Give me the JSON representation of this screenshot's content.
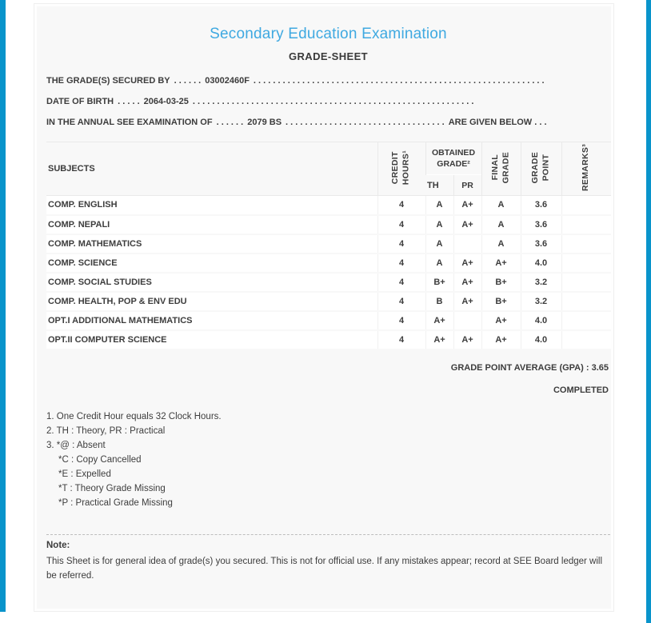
{
  "header": {
    "title": "Secondary Education Examination",
    "subtitle": "GRADE-SHEET"
  },
  "info": {
    "secured_by": {
      "label": "THE GRADE(S) SECURED BY",
      "dots_before": ". . . . . .",
      "value": "03002460F",
      "dots_after": ". . . . . . . . . . . . . . . . . . . . . . . . . . . . . . . . . . . . . . . . . . . . . . . . . . . . . . . . . . . ."
    },
    "date_of_birth": {
      "label": "DATE OF BIRTH",
      "dots_before": ". . . . .",
      "value": "2064-03-25",
      "dots_after": ". . . . . . . . . . . . . . . . . . . . . . . . . . . . . . . . . . . . . . . . . . . . . . . . . . . . . . . . . ."
    },
    "examination": {
      "label": "IN THE ANNUAL SEE EXAMINATION OF",
      "dots_before": ". . . . . .",
      "value": "2079 BS",
      "dots_mid": ". . . . . . . . . . . . . . . . . . . . . . . . . . . . . . . . .",
      "suffix": "ARE GIVEN BELOW . . ."
    }
  },
  "table": {
    "columns": {
      "subjects": "SUBJECTS",
      "credit_hours": "CREDIT\nHOURS¹",
      "obtained_grade": "OBTAINED\nGRADE²",
      "th": "TH",
      "pr": "PR",
      "final_grade": "FINAL\nGRADE",
      "grade_point": "GRADE\nPOINT",
      "remarks": "REMARKS³"
    },
    "rows": [
      {
        "subject": "COMP. ENGLISH",
        "credit_hours": "4",
        "th": "A",
        "pr": "A+",
        "final_grade": "A",
        "grade_point": "3.6",
        "remarks": ""
      },
      {
        "subject": "COMP. NEPALI",
        "credit_hours": "4",
        "th": "A",
        "pr": "A+",
        "final_grade": "A",
        "grade_point": "3.6",
        "remarks": ""
      },
      {
        "subject": "COMP. MATHEMATICS",
        "credit_hours": "4",
        "th": "A",
        "pr": "",
        "final_grade": "A",
        "grade_point": "3.6",
        "remarks": ""
      },
      {
        "subject": "COMP. SCIENCE",
        "credit_hours": "4",
        "th": "A",
        "pr": "A+",
        "final_grade": "A+",
        "grade_point": "4.0",
        "remarks": ""
      },
      {
        "subject": "COMP. SOCIAL STUDIES",
        "credit_hours": "4",
        "th": "B+",
        "pr": "A+",
        "final_grade": "B+",
        "grade_point": "3.2",
        "remarks": ""
      },
      {
        "subject": "COMP. HEALTH, POP & ENV EDU",
        "credit_hours": "4",
        "th": "B",
        "pr": "A+",
        "final_grade": "B+",
        "grade_point": "3.2",
        "remarks": ""
      },
      {
        "subject": "OPT.I ADDITIONAL MATHEMATICS",
        "credit_hours": "4",
        "th": "A+",
        "pr": "",
        "final_grade": "A+",
        "grade_point": "4.0",
        "remarks": ""
      },
      {
        "subject": "OPT.II COMPUTER SCIENCE",
        "credit_hours": "4",
        "th": "A+",
        "pr": "A+",
        "final_grade": "A+",
        "grade_point": "4.0",
        "remarks": ""
      }
    ]
  },
  "summary": {
    "gpa_label": "GRADE POINT AVERAGE (GPA) :",
    "gpa_value": "3.65",
    "status": "COMPLETED"
  },
  "footnotes": [
    {
      "text": "1. One Credit Hour equals 32 Clock Hours."
    },
    {
      "text": "2. TH : Theory, PR : Practical"
    },
    {
      "text": "3. *@ : Absent"
    },
    {
      "text": "*C : Copy Cancelled"
    },
    {
      "text": "*E : Expelled"
    },
    {
      "text": "*T : Theory Grade Missing"
    },
    {
      "text": "*P : Practical Grade Missing"
    }
  ],
  "note": {
    "label": "Note:",
    "text": "This Sheet is for general idea of grade(s) you secured. This is not for official use. If any mistakes appear; record at SEE Board ledger will be referred."
  },
  "colors": {
    "title_blue": "#3fa9e1",
    "side_bar_blue": "#0994cb",
    "card_background": "#f8f8f8",
    "text_dark": "#3c3c3c"
  }
}
